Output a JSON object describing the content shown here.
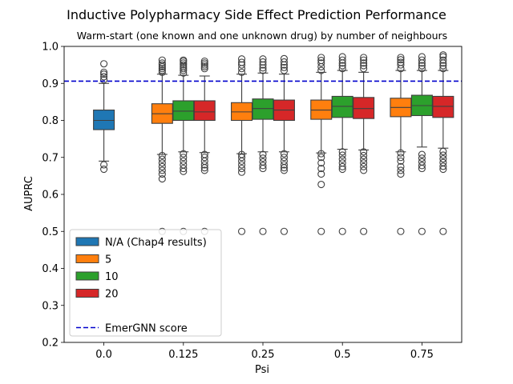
{
  "chart_data": {
    "type": "boxplot",
    "title": "Inductive Polypharmacy Side Effect Prediction Performance",
    "subtitle": "Warm-start (one known and one unknown drug) by number of neighbours",
    "xlabel": "Psi",
    "ylabel": "AUPRC",
    "ylim": [
      0.2,
      1.0
    ],
    "yticks": [
      "0.2",
      "0.3",
      "0.4",
      "0.5",
      "0.6",
      "0.7",
      "0.8",
      "0.9",
      "1.0"
    ],
    "categories": [
      "0.0",
      "0.125",
      "0.25",
      "0.5",
      "0.75"
    ],
    "grid": false,
    "legend_position": "lower-left",
    "reference_line": {
      "label": "EmerGNN score",
      "value": 0.906,
      "color": "#0000cc"
    },
    "series": [
      {
        "name": "N/A (Chap4 results)",
        "color": "#1f77b4",
        "boxes": [
          {
            "category": "0.0",
            "q1": 0.775,
            "median": 0.8,
            "q3": 0.828,
            "whisker_low": 0.69,
            "whisker_high": 0.9,
            "outliers": [
              0.68,
              0.668,
              0.91,
              0.918,
              0.925,
              0.93,
              0.953
            ]
          }
        ]
      },
      {
        "name": "5",
        "color": "#ff7f0e",
        "boxes": [
          {
            "category": "0.125",
            "q1": 0.792,
            "median": 0.818,
            "q3": 0.845,
            "whisker_low": 0.708,
            "whisker_high": 0.925,
            "outliers": [
              0.5,
              0.642,
              0.655,
              0.665,
              0.675,
              0.685,
              0.695,
              0.705,
              0.93,
              0.935,
              0.94,
              0.945,
              0.95,
              0.955,
              0.963
            ]
          },
          {
            "category": "0.25",
            "q1": 0.8,
            "median": 0.823,
            "q3": 0.848,
            "whisker_low": 0.71,
            "whisker_high": 0.925,
            "outliers": [
              0.5,
              0.66,
              0.67,
              0.68,
              0.69,
              0.7,
              0.708,
              0.93,
              0.94,
              0.95,
              0.957,
              0.966
            ]
          },
          {
            "category": "0.5",
            "q1": 0.803,
            "median": 0.828,
            "q3": 0.855,
            "whisker_low": 0.712,
            "whisker_high": 0.93,
            "outliers": [
              0.5,
              0.627,
              0.655,
              0.67,
              0.685,
              0.7,
              0.71,
              0.935,
              0.945,
              0.955,
              0.962,
              0.97
            ]
          },
          {
            "category": "0.75",
            "q1": 0.81,
            "median": 0.835,
            "q3": 0.86,
            "whisker_low": 0.715,
            "whisker_high": 0.935,
            "outliers": [
              0.5,
              0.655,
              0.665,
              0.675,
              0.69,
              0.7,
              0.712,
              0.94,
              0.95,
              0.957,
              0.964,
              0.97
            ]
          }
        ]
      },
      {
        "name": "10",
        "color": "#2ca02c",
        "boxes": [
          {
            "category": "0.125",
            "q1": 0.8,
            "median": 0.825,
            "q3": 0.853,
            "whisker_low": 0.715,
            "whisker_high": 0.922,
            "outliers": [
              0.5,
              0.662,
              0.67,
              0.68,
              0.69,
              0.7,
              0.71,
              0.928,
              0.935,
              0.94,
              0.945,
              0.95,
              0.955,
              0.96,
              0.963
            ]
          },
          {
            "category": "0.25",
            "q1": 0.803,
            "median": 0.832,
            "q3": 0.858,
            "whisker_low": 0.715,
            "whisker_high": 0.928,
            "outliers": [
              0.5,
              0.67,
              0.678,
              0.688,
              0.698,
              0.708,
              0.935,
              0.942,
              0.95,
              0.958,
              0.966
            ]
          },
          {
            "category": "0.5",
            "q1": 0.808,
            "median": 0.838,
            "q3": 0.865,
            "whisker_low": 0.722,
            "whisker_high": 0.935,
            "outliers": [
              0.5,
              0.668,
              0.675,
              0.685,
              0.695,
              0.706,
              0.715,
              0.94,
              0.948,
              0.955,
              0.963,
              0.972
            ]
          },
          {
            "category": "0.75",
            "q1": 0.813,
            "median": 0.84,
            "q3": 0.868,
            "whisker_low": 0.728,
            "whisker_high": 0.935,
            "outliers": [
              0.5,
              0.67,
              0.678,
              0.688,
              0.698,
              0.708,
              0.94,
              0.948,
              0.955,
              0.963,
              0.972
            ]
          }
        ]
      },
      {
        "name": "20",
        "color": "#d62728",
        "boxes": [
          {
            "category": "0.125",
            "q1": 0.8,
            "median": 0.823,
            "q3": 0.853,
            "whisker_low": 0.713,
            "whisker_high": 0.92,
            "outliers": [
              0.5,
              0.665,
              0.672,
              0.68,
              0.69,
              0.7,
              0.708,
              0.94,
              0.945,
              0.95,
              0.955,
              0.96
            ]
          },
          {
            "category": "0.25",
            "q1": 0.8,
            "median": 0.828,
            "q3": 0.855,
            "whisker_low": 0.715,
            "whisker_high": 0.925,
            "outliers": [
              0.5,
              0.665,
              0.672,
              0.68,
              0.69,
              0.7,
              0.71,
              0.935,
              0.943,
              0.95,
              0.958,
              0.967
            ]
          },
          {
            "category": "0.5",
            "q1": 0.805,
            "median": 0.832,
            "q3": 0.862,
            "whisker_low": 0.72,
            "whisker_high": 0.93,
            "outliers": [
              0.5,
              0.665,
              0.675,
              0.685,
              0.695,
              0.705,
              0.715,
              0.94,
              0.948,
              0.955,
              0.963,
              0.97
            ]
          },
          {
            "category": "0.75",
            "q1": 0.808,
            "median": 0.838,
            "q3": 0.865,
            "whisker_low": 0.725,
            "whisker_high": 0.935,
            "outliers": [
              0.5,
              0.668,
              0.676,
              0.686,
              0.696,
              0.706,
              0.716,
              0.94,
              0.948,
              0.955,
              0.963,
              0.972,
              0.977
            ]
          }
        ]
      }
    ]
  }
}
